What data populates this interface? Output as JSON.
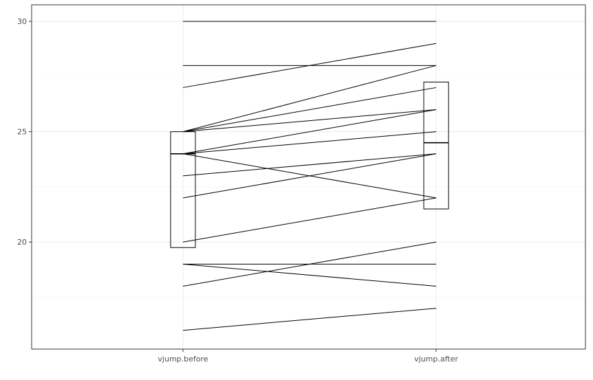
{
  "chart_data": {
    "type": "boxplot-paired-lines",
    "categories": [
      "vjump.before",
      "vjump.after"
    ],
    "ylim": [
      15.15,
      30.75
    ],
    "yticks": [
      20,
      25,
      30
    ],
    "ytick_labels": [
      "20",
      "25",
      "30"
    ],
    "grid": true,
    "legend": "none",
    "title": "",
    "xlabel": "",
    "ylabel": "",
    "boxes": [
      {
        "category": "vjump.before",
        "q1": 19.75,
        "median": 24.0,
        "q3": 25.0
      },
      {
        "category": "vjump.after",
        "q1": 21.5,
        "median": 24.5,
        "q3": 27.25
      }
    ],
    "pairs": [
      {
        "before": 30,
        "after": 30
      },
      {
        "before": 28,
        "after": 28
      },
      {
        "before": 27,
        "after": 29
      },
      {
        "before": 25,
        "after": 28
      },
      {
        "before": 25,
        "after": 27
      },
      {
        "before": 25,
        "after": 26
      },
      {
        "before": 24,
        "after": 26
      },
      {
        "before": 24,
        "after": 25
      },
      {
        "before": 24,
        "after": 22
      },
      {
        "before": 23,
        "after": 24
      },
      {
        "before": 22,
        "after": 24
      },
      {
        "before": 20,
        "after": 22
      },
      {
        "before": 19,
        "after": 19
      },
      {
        "before": 19,
        "after": 18
      },
      {
        "before": 18,
        "after": 20
      },
      {
        "before": 16,
        "after": 17
      }
    ],
    "colors": {
      "line": "#000000",
      "panel_border": "#333333",
      "grid_major": "#ebebeb",
      "grid_minor": "#f5f5f5",
      "background": "#ffffff",
      "text": "#4d4d4d"
    }
  }
}
